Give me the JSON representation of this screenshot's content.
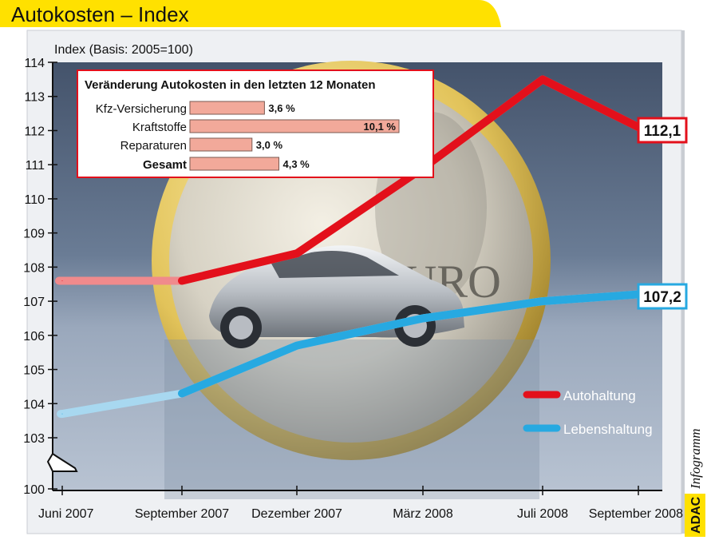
{
  "header": {
    "title": "Autokosten – Index"
  },
  "brand": {
    "logo_text": "ADAC",
    "sub_text": "Infogramm"
  },
  "colors": {
    "title_yellow": "#ffe100",
    "plot_top": "#4a5a73",
    "plot_bottom": "#a9b6c8",
    "auto_red": "#e3101b",
    "leben_blue": "#27a9e1",
    "inset_bar": "#f2a99a",
    "inset_border": "#e3101b"
  },
  "chart_data": {
    "type": "line",
    "ylabel": "Index (Basis: 2005=100)",
    "xlabel": "",
    "ylim": [
      100,
      114
    ],
    "y_break": [
      100,
      103
    ],
    "yticks": [
      100,
      103,
      104,
      105,
      106,
      107,
      108,
      109,
      110,
      111,
      112,
      113,
      114
    ],
    "x_labels": [
      "Juni 2007",
      "September 2007",
      "Dezember 2007",
      "März 2008",
      "Juli 2008",
      "September 2008"
    ],
    "x": [
      "2007-06",
      "2007-09",
      "2007-12",
      "2008-03",
      "2008-07",
      "2008-09"
    ],
    "series": [
      {
        "name": "Autohaltung",
        "color": "#e3101b",
        "values": [
          107.6,
          107.6,
          108.4,
          110.9,
          113.5,
          112.1
        ],
        "end_label": "112,1"
      },
      {
        "name": "Lebenshaltung",
        "color": "#27a9e1",
        "values": [
          103.7,
          104.3,
          105.7,
          106.5,
          107.0,
          107.2
        ],
        "end_label": "107,2"
      }
    ],
    "legend_position": "bottom-right",
    "grid": false,
    "inset": {
      "type": "bar",
      "title": "Veränderung Autokosten in den letzten 12 Monaten",
      "categories": [
        "Kfz-Versicherung",
        "Kraftstoffe",
        "Reparaturen",
        "Gesamt"
      ],
      "values": [
        3.6,
        10.1,
        3.0,
        4.3
      ],
      "value_labels": [
        "3,6 %",
        "10,1 %",
        "3,0 %",
        "4,3 %"
      ]
    }
  }
}
